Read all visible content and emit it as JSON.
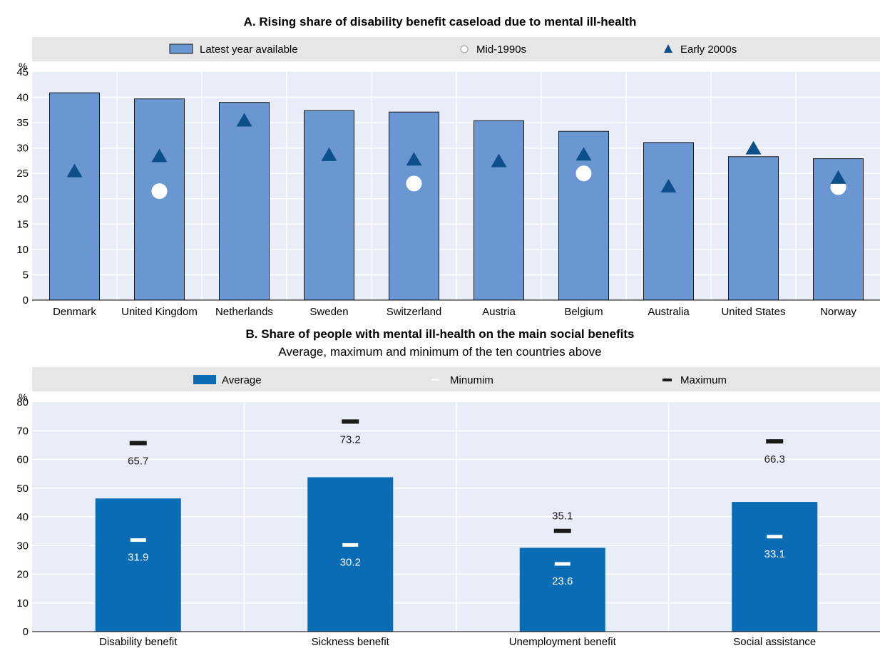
{
  "colors": {
    "bar_a": "#6a97d1",
    "bar_a_stroke": "#1a1a1a",
    "bar_b": "#0a6cb5",
    "plot_bg": "#e9edf7",
    "legend_bg": "#e6e6e6",
    "grid": "#ffffff",
    "triangle": "#0d4f8b",
    "circle": "#ffffff",
    "max_marker": "#1a1a1a",
    "min_marker": "#ffffff"
  },
  "chart_data": [
    {
      "type": "bar",
      "title": "A. Rising share of disability benefit caseload due to mental ill-health",
      "unit": "%",
      "ylim": [
        0,
        45
      ],
      "yticks": [
        0,
        5,
        10,
        15,
        20,
        25,
        30,
        35,
        40,
        45
      ],
      "ytick_labels": [
        "0",
        "5",
        "10",
        "15",
        "20",
        "25",
        "30",
        "35",
        "40",
        "45"
      ],
      "grid": true,
      "legend_position": "top",
      "categories": [
        "Denmark",
        "United Kingdom",
        "Netherlands",
        "Sweden",
        "Switzerland",
        "Austria",
        "Belgium",
        "Australia",
        "United States",
        "Norway"
      ],
      "series": [
        {
          "name": "Latest year available",
          "marker": "bar",
          "values": [
            40.9,
            39.7,
            39.0,
            37.4,
            37.1,
            35.4,
            33.3,
            31.1,
            28.3,
            27.9
          ]
        },
        {
          "name": "Mid-1990s",
          "marker": "circle",
          "values": [
            null,
            21.5,
            null,
            null,
            23.0,
            null,
            25.0,
            null,
            null,
            22.3
          ]
        },
        {
          "name": "Early 2000s",
          "marker": "triangle",
          "values": [
            25.5,
            28.5,
            35.5,
            28.7,
            27.8,
            27.5,
            28.8,
            22.5,
            30.0,
            24.2
          ]
        }
      ]
    },
    {
      "type": "bar",
      "title": "B. Share of people with mental ill-health on the main social benefits",
      "subtitle": "Average, maximum and minimum of the ten countries above",
      "unit": "%",
      "ylim": [
        0,
        80
      ],
      "yticks": [
        0,
        10,
        20,
        30,
        40,
        50,
        60,
        70,
        80
      ],
      "ytick_labels": [
        "0",
        "10",
        "20",
        "30",
        "40",
        "50",
        "60",
        "70",
        "80"
      ],
      "grid": true,
      "legend_position": "top",
      "categories": [
        "Disability benefit",
        "Sickness benefit",
        "Unemployment benefit",
        "Social assistance"
      ],
      "series": [
        {
          "name": "Average",
          "marker": "bar",
          "values": [
            46.4,
            53.8,
            29.2,
            45.2
          ]
        },
        {
          "name": "Minumim",
          "marker": "dash-white",
          "values": [
            31.9,
            30.2,
            23.6,
            33.1
          ],
          "labels": [
            "31.9",
            "30.2",
            "23.6",
            "33.1"
          ]
        },
        {
          "name": "Maximum",
          "marker": "dash-black",
          "values": [
            65.7,
            73.2,
            35.1,
            66.3
          ],
          "labels": [
            "65.7",
            "73.2",
            "35.1",
            "66.3"
          ]
        }
      ]
    }
  ]
}
